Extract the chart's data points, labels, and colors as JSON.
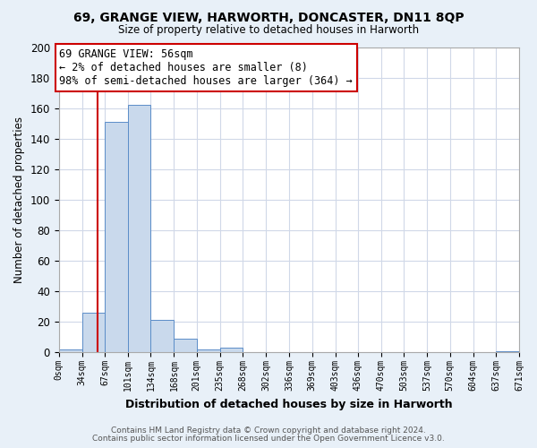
{
  "title": "69, GRANGE VIEW, HARWORTH, DONCASTER, DN11 8QP",
  "subtitle": "Size of property relative to detached houses in Harworth",
  "xlabel": "Distribution of detached houses by size in Harworth",
  "ylabel": "Number of detached properties",
  "bar_color": "#c9d9ec",
  "bar_edge_color": "#5b8dc8",
  "bg_color": "#e8f0f8",
  "plot_bg_color": "#ffffff",
  "grid_color": "#d0d8e8",
  "bin_edges": [
    0,
    34,
    67,
    101,
    134,
    168,
    201,
    235,
    268,
    302,
    336,
    369,
    403,
    436,
    470,
    503,
    537,
    570,
    604,
    637,
    671
  ],
  "bin_heights": [
    2,
    26,
    151,
    162,
    21,
    9,
    2,
    3,
    0,
    0,
    0,
    0,
    0,
    0,
    0,
    0,
    0,
    0,
    0,
    1
  ],
  "red_line_x": 56,
  "ylim": [
    0,
    200
  ],
  "yticks": [
    0,
    20,
    40,
    60,
    80,
    100,
    120,
    140,
    160,
    180,
    200
  ],
  "xtick_labels": [
    "0sqm",
    "34sqm",
    "67sqm",
    "101sqm",
    "134sqm",
    "168sqm",
    "201sqm",
    "235sqm",
    "268sqm",
    "302sqm",
    "336sqm",
    "369sqm",
    "403sqm",
    "436sqm",
    "470sqm",
    "503sqm",
    "537sqm",
    "570sqm",
    "604sqm",
    "637sqm",
    "671sqm"
  ],
  "annotation_title": "69 GRANGE VIEW: 56sqm",
  "annotation_line1": "← 2% of detached houses are smaller (8)",
  "annotation_line2": "98% of semi-detached houses are larger (364) →",
  "footer_line1": "Contains HM Land Registry data © Crown copyright and database right 2024.",
  "footer_line2": "Contains public sector information licensed under the Open Government Licence v3.0."
}
